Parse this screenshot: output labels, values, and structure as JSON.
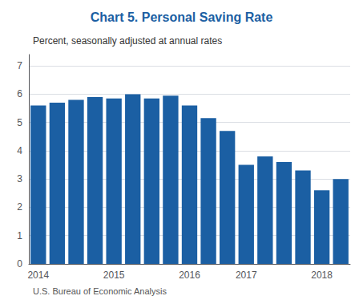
{
  "chart_data": {
    "type": "bar",
    "title": "Chart 5. Personal Saving Rate",
    "subtitle": "Percent, seasonally adjusted at annual rates",
    "footer": "U.S. Bureau of Economic Analysis",
    "categories": [
      "2014",
      null,
      null,
      null,
      "2015",
      null,
      null,
      null,
      "2016",
      null,
      null,
      "2017",
      null,
      null,
      null,
      "2018",
      null
    ],
    "values": [
      5.6,
      5.7,
      5.8,
      5.9,
      5.85,
      6.0,
      5.85,
      5.95,
      5.6,
      5.15,
      4.7,
      3.5,
      3.8,
      3.6,
      3.3,
      2.6,
      3.0
    ],
    "color": "#1B5FA3",
    "ylim": [
      0,
      7.4
    ],
    "yticks": [
      0,
      1,
      2,
      3,
      4,
      5,
      6,
      7
    ],
    "grid": true
  }
}
